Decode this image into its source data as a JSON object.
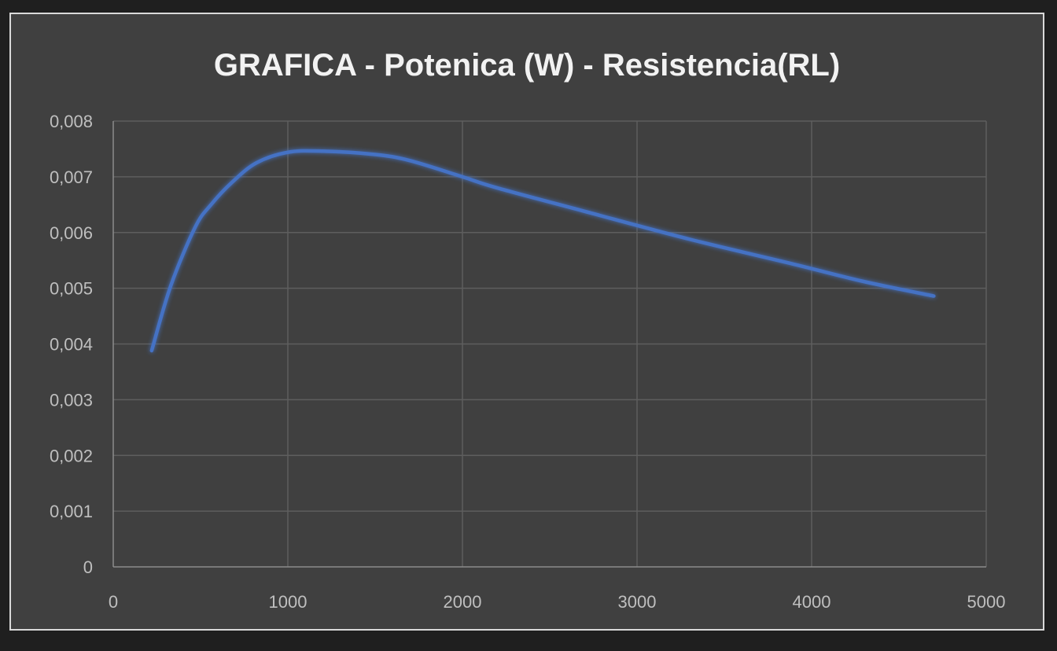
{
  "chart_data": {
    "type": "line",
    "title": "GRAFICA - Potenica (W) - Resistencia(RL)",
    "xlabel": "",
    "ylabel": "",
    "xlim": [
      0,
      5000
    ],
    "ylim": [
      0,
      0.008
    ],
    "x_ticks": [
      0,
      1000,
      2000,
      3000,
      4000,
      5000
    ],
    "x_tick_labels": [
      "0",
      "1000",
      "2000",
      "3000",
      "4000",
      "5000"
    ],
    "y_ticks": [
      0,
      0.001,
      0.002,
      0.003,
      0.004,
      0.005,
      0.006,
      0.007,
      0.008
    ],
    "y_tick_labels": [
      "0",
      "0,001",
      "0,002",
      "0,003",
      "0,004",
      "0,005",
      "0,006",
      "0,007",
      "0,008"
    ],
    "grid": true,
    "legend": "none",
    "series": [
      {
        "color": "#4472c4",
        "smooth": true,
        "x": [
          220,
          330,
          470,
          560,
          680,
          820,
          1000,
          1200,
          1500,
          1700,
          2000,
          2200,
          2700,
          3300,
          3900,
          4300,
          4700
        ],
        "y": [
          0.00388,
          0.00505,
          0.0061,
          0.0065,
          0.0069,
          0.00725,
          0.00744,
          0.00746,
          0.0074,
          0.00729,
          0.007,
          0.0068,
          0.00638,
          0.00588,
          0.00543,
          0.00512,
          0.00486
        ]
      }
    ]
  },
  "colors": {
    "background": "#404040",
    "outer": "#1f1f1f",
    "border": "#d9d9d9",
    "series": "#4472c4"
  }
}
